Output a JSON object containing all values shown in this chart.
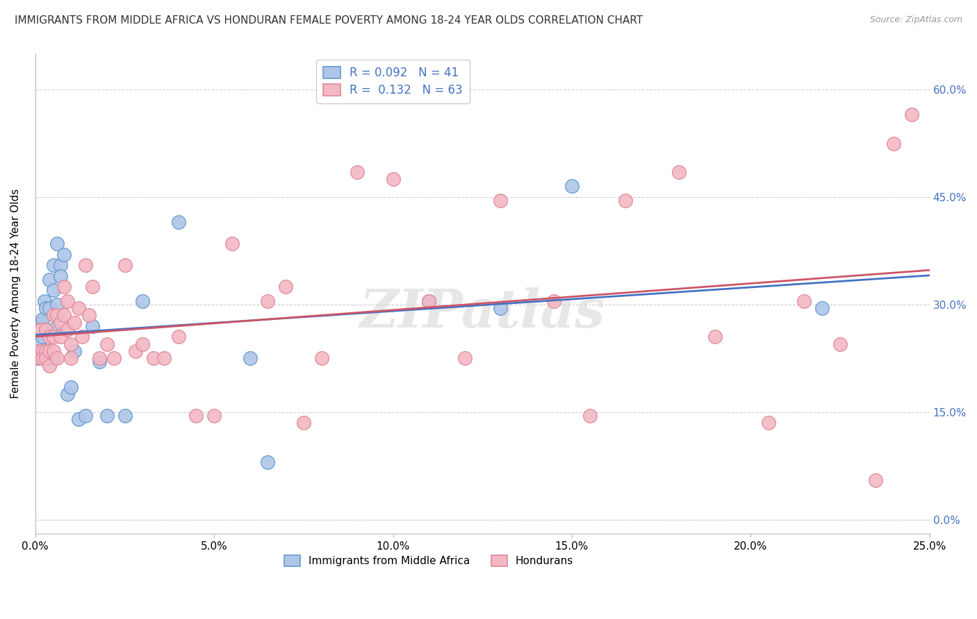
{
  "title": "IMMIGRANTS FROM MIDDLE AFRICA VS HONDURAN FEMALE POVERTY AMONG 18-24 YEAR OLDS CORRELATION CHART",
  "source": "Source: ZipAtlas.com",
  "ylabel": "Female Poverty Among 18-24 Year Olds",
  "x_tick_labels": [
    "0.0%",
    "",
    "",
    "",
    "",
    "",
    "",
    "",
    "",
    "",
    "5.0%",
    "",
    "",
    "",
    "",
    "",
    "",
    "",
    "",
    "",
    "10.0%",
    "",
    "",
    "",
    "",
    "",
    "",
    "",
    "",
    "",
    "15.0%",
    "",
    "",
    "",
    "",
    "",
    "",
    "",
    "",
    "",
    "20.0%",
    "",
    "",
    "",
    "",
    "",
    "",
    "",
    "",
    "",
    "25.0%"
  ],
  "y_tick_labels_right": [
    "0.0%",
    "15.0%",
    "30.0%",
    "45.0%",
    "60.0%"
  ],
  "xlim": [
    0.0,
    0.25
  ],
  "ylim": [
    -0.02,
    0.65
  ],
  "r_blue": 0.092,
  "n_blue": 41,
  "r_pink": 0.132,
  "n_pink": 63,
  "legend_labels": [
    "Immigrants from Middle Africa",
    "Hondurans"
  ],
  "blue_face": "#aec6e8",
  "blue_edge": "#6699cc",
  "pink_face": "#f4b8c4",
  "pink_edge": "#dd8899",
  "line_blue": "#4472c4",
  "line_pink": "#cc5566",
  "right_axis_color": "#4472c4",
  "watermark": "ZIPatlas",
  "blue_x": [
    0.0005,
    0.001,
    0.001,
    0.0015,
    0.002,
    0.002,
    0.002,
    0.0025,
    0.003,
    0.003,
    0.003,
    0.003,
    0.004,
    0.004,
    0.004,
    0.005,
    0.005,
    0.005,
    0.005,
    0.006,
    0.006,
    0.007,
    0.007,
    0.008,
    0.009,
    0.01,
    0.011,
    0.012,
    0.014,
    0.016,
    0.018,
    0.02,
    0.025,
    0.03,
    0.04,
    0.06,
    0.065,
    0.11,
    0.13,
    0.15,
    0.22
  ],
  "blue_y": [
    0.225,
    0.265,
    0.245,
    0.275,
    0.28,
    0.255,
    0.225,
    0.305,
    0.295,
    0.265,
    0.235,
    0.225,
    0.335,
    0.295,
    0.225,
    0.355,
    0.32,
    0.265,
    0.225,
    0.385,
    0.3,
    0.355,
    0.34,
    0.37,
    0.175,
    0.185,
    0.235,
    0.14,
    0.145,
    0.27,
    0.22,
    0.145,
    0.145,
    0.305,
    0.415,
    0.225,
    0.08,
    0.305,
    0.295,
    0.465,
    0.295
  ],
  "pink_x": [
    0.0005,
    0.001,
    0.001,
    0.0015,
    0.002,
    0.002,
    0.003,
    0.003,
    0.003,
    0.004,
    0.004,
    0.004,
    0.005,
    0.005,
    0.005,
    0.006,
    0.006,
    0.007,
    0.007,
    0.008,
    0.008,
    0.009,
    0.009,
    0.01,
    0.01,
    0.011,
    0.012,
    0.013,
    0.014,
    0.015,
    0.016,
    0.018,
    0.02,
    0.022,
    0.025,
    0.028,
    0.03,
    0.033,
    0.036,
    0.04,
    0.045,
    0.05,
    0.055,
    0.065,
    0.07,
    0.075,
    0.08,
    0.09,
    0.1,
    0.11,
    0.12,
    0.13,
    0.145,
    0.155,
    0.165,
    0.18,
    0.19,
    0.205,
    0.215,
    0.225,
    0.235,
    0.24,
    0.245
  ],
  "pink_y": [
    0.235,
    0.265,
    0.225,
    0.265,
    0.235,
    0.225,
    0.265,
    0.235,
    0.225,
    0.255,
    0.235,
    0.215,
    0.285,
    0.255,
    0.235,
    0.285,
    0.225,
    0.275,
    0.255,
    0.325,
    0.285,
    0.305,
    0.265,
    0.245,
    0.225,
    0.275,
    0.295,
    0.255,
    0.355,
    0.285,
    0.325,
    0.225,
    0.245,
    0.225,
    0.355,
    0.235,
    0.245,
    0.225,
    0.225,
    0.255,
    0.145,
    0.145,
    0.385,
    0.305,
    0.325,
    0.135,
    0.225,
    0.485,
    0.475,
    0.305,
    0.225,
    0.445,
    0.305,
    0.145,
    0.445,
    0.485,
    0.255,
    0.135,
    0.305,
    0.245,
    0.055,
    0.525,
    0.565
  ]
}
